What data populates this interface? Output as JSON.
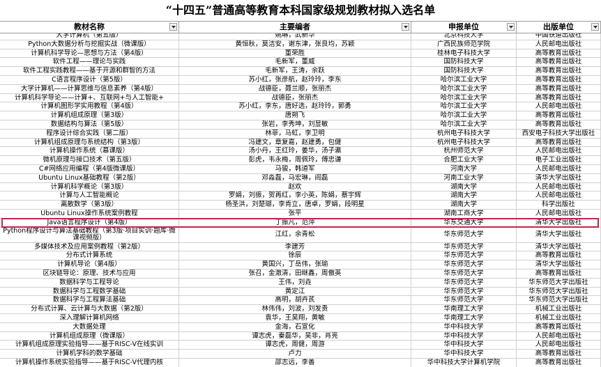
{
  "title": "“十四五”普通高等教育本科国家级规划教材拟入选名单",
  "table": {
    "columns": [
      "教材名称",
      "主要编者",
      "申报单位",
      "出版单位"
    ],
    "rows": [
      [
        "大学计算机（第五版）",
        "姚琳，武新华",
        "北京科技大学",
        "中国铁道出版社"
      ],
      [
        "Python大数据分析与挖掘实战（微课版）",
        "黄恒秋，莫洁安，谢东津，张良均，苏颖",
        "广西民族师范学院",
        "人民邮电出版社"
      ],
      [
        "计算机科学导论—思想与方法（第4版）",
        "董荣胜",
        "桂林电子科技大学",
        "高等教育出版社"
      ],
      [
        "软件工程——理论与实践",
        "毛新军，董威",
        "国防科技大学",
        "高等教育出版社"
      ],
      [
        "软件工程实践教程——基于开源和群智的方法",
        "毛新军，王涛，余跃",
        "国防科技大学",
        "高等教育出版社"
      ],
      [
        "C语言程序设计（第5版）",
        "苏小红，张彦航，赵玲玲，李东",
        "哈尔滨工业大学",
        "高等教育出版社"
      ],
      [
        "大学计算机——计算思维与信息素养（第4版）",
        "战德臣，聂兰顺，张丽杰",
        "哈尔滨工业大学",
        "高等教育出版社"
      ],
      [
        "计算机科学导论——计算+、互联网+与人工智能+",
        "战德臣，张丽杰",
        "哈尔滨工业大学",
        "高等教育出版社"
      ],
      [
        "计算机图形学实用教程（第4版）",
        "苏小红，李东，唐好选，赵玲玲，郭勇",
        "哈尔滨工业大学",
        "人民邮电出版社"
      ],
      [
        "计算机组成原理（第3版）",
        "唐朔飞",
        "哈尔滨工业大学",
        "高等教育出版社"
      ],
      [
        "数据结构与算法（第5版）",
        "张岩，李秀坤，刘显敏",
        "哈尔滨工业大学",
        "高等教育出版社"
      ],
      [
        "程序设计综合实践（第二版）",
        "林菲，马虹，李卫明",
        "杭州电子科技大学",
        "西安电子科技大学出版社"
      ],
      [
        "计算机组成原理与系统结构（第3版）",
        "冯建文，章复嘉，赵建勇，包健",
        "杭州电子科技大学",
        "高等教育出版社"
      ],
      [
        "计算机操作系统（慕课版）",
        "汤小丹，王红玲，姜华，汤子瀛",
        "杭州师范大学",
        "人民邮电出版社"
      ],
      [
        "微机原理与接口技术（第五版）",
        "彭虎，韦永梅，周佩玲，傅忠谦",
        "合肥工业大学",
        "电子工业出版社"
      ],
      [
        "C#网络应用编程（第4版微课版）",
        "马骏，韩道军",
        "河南大学",
        "人民邮电出版社"
      ],
      [
        "Ubuntu Linux基础教程（第2版）",
        "邓淼磊，马宏琳，阎磊",
        "河南工业大学",
        "清华大学出版社"
      ],
      [
        "计算机科学概论（第3版）",
        "赵欢",
        "湖南大学",
        "人民邮电出版社"
      ],
      [
        "计算与人工智能概论",
        "罗娟，刘振，贺再红，李小英，陈娟，蔡宇辉",
        "湖南大学",
        "人民邮电出版社"
      ],
      [
        "离散数学（第3版）",
        "杨圣洪，刘楚瑚，李肯立，唐卓，罗娟，段明星",
        "湖南大学",
        "科学出版社"
      ],
      [
        "Ubuntu Linux操作系统案例教程",
        "张平",
        "湖南工商大学",
        "人民邮电出版社"
      ],
      [
        "Java语言程序设计（第4版）",
        "丁振凡，范萍",
        "华东交通大学",
        "清华大学出版社"
      ],
      [
        "Python程序设计与算法基础教程（第3版·项目实训·题库·微课视频版）",
        "江红，余青松",
        "华东师范大学",
        "清华大学出版社"
      ],
      [
        "多媒体技术及应用案例教程（第2版）",
        "李建芳",
        "华东师范大学",
        "清华大学出版社"
      ],
      [
        "分布式计算系统",
        "徐辰",
        "华东师范大学",
        "高等教育出版社"
      ],
      [
        "计算机导论（第4版）",
        "黄国兴，丁岳伟，张瑜",
        "华东师范大学",
        "清华大学出版社"
      ],
      [
        "区块链导论：原理、技术与应用",
        "张召，金澈清，田继鑫，周傲英",
        "华东师范大学",
        "高等教育出版社"
      ],
      [
        "数据科学与工程导论",
        "王伟，刘垚",
        "华东师范大学",
        "华东师范大学出版社"
      ],
      [
        "数据科学与工程数学基础",
        "黄定江",
        "华东师范大学",
        "华东师范大学出版社"
      ],
      [
        "数据科学与工程算法基础",
        "高明，胡卉芪",
        "华东师范大学",
        "华东师范大学出版社"
      ],
      [
        "分布式计算、云计算与大数据（第2版）",
        "林伟伟，刘波，刘发贵",
        "华南理工大学",
        "机械工业出版社"
      ],
      [
        "深入理解计算机网络",
        "袁华，王昊翔，黄敏",
        "华南理工大学",
        "机械工业出版社"
      ],
      [
        "大数据处理",
        "金海，石宣化",
        "华中科技大学",
        "高等教育出版社"
      ],
      [
        "计算机组成原理（微课版）",
        "谭志虎，秦磊华，吴非，肖亮",
        "华中科技大学",
        "人民邮电出版社"
      ],
      [
        "计算机组成原理实验指导——基于RISC-V在线实训",
        "谭志虎，周健，周游",
        "华中科技大学",
        "人民邮电出版社"
      ],
      [
        "计算机学科的数学基础",
        "卢力",
        "华中科技大学",
        "高等教育出版社"
      ],
      [
        "计算机操作系统实验指导——基于RISC-V代理内核",
        "邵志远，李善",
        "华中科技大学计算机学院",
        "高等教育出版社"
      ]
    ]
  }
}
